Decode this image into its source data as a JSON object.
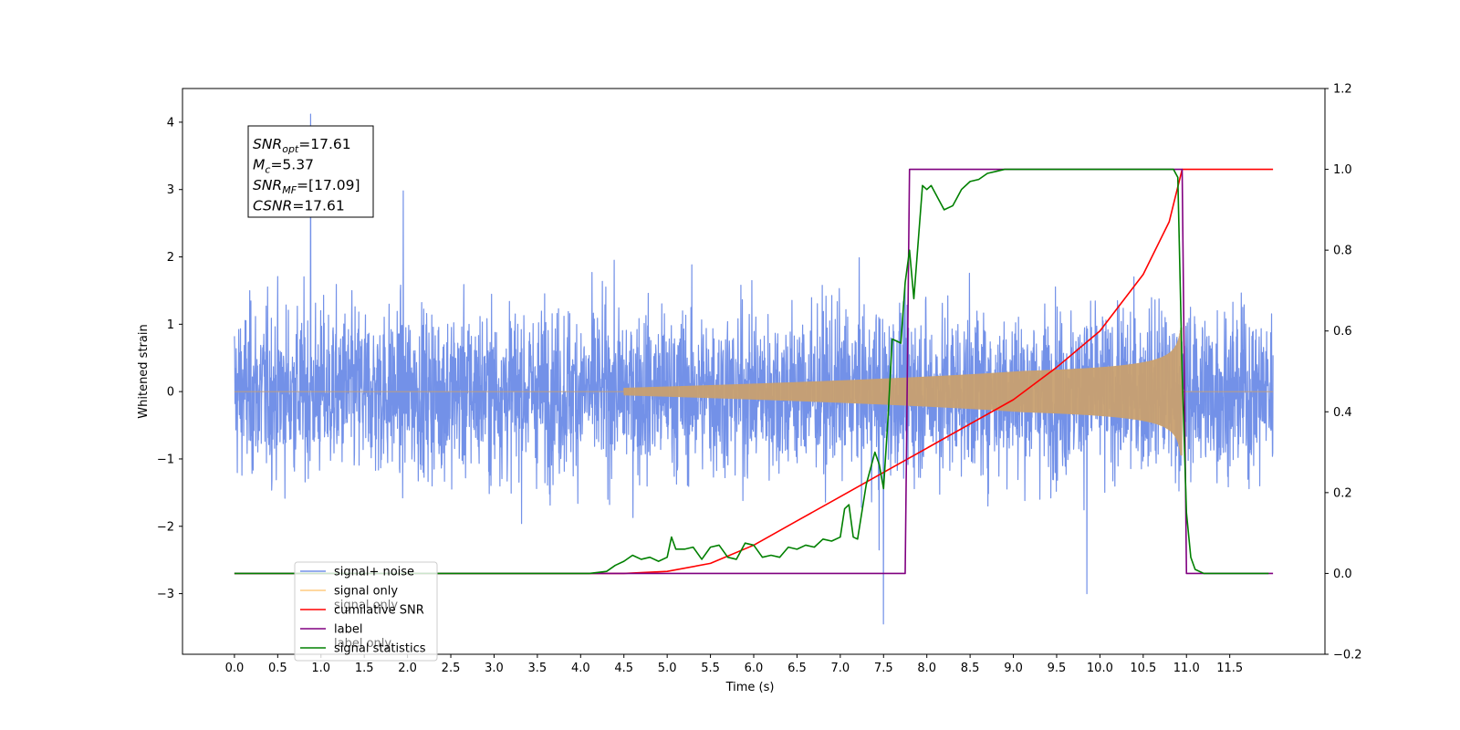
{
  "chart_data": {
    "type": "line",
    "title": "",
    "xlabel": "Time (s)",
    "ylabel": "Whitened strain",
    "xlim": [
      -0.6,
      12.6
    ],
    "ylim": [
      -3.9,
      4.5
    ],
    "y2lim": [
      -0.2,
      1.2
    ],
    "x_ticks": [
      "0.0",
      "0.5",
      "1.0",
      "1.5",
      "2.0",
      "2.5",
      "3.0",
      "3.5",
      "4.0",
      "4.5",
      "5.0",
      "5.5",
      "6.0",
      "6.5",
      "7.0",
      "7.5",
      "8.0",
      "8.5",
      "9.0",
      "9.5",
      "10.0",
      "10.5",
      "11.0",
      "11.5"
    ],
    "y_ticks": [
      "4",
      "3",
      "2",
      "1",
      "0",
      "−1",
      "−2",
      "−3"
    ],
    "y2_ticks": [
      "1.2",
      "1.0",
      "0.8",
      "0.6",
      "0.4",
      "0.2",
      "0.0",
      "−0.2"
    ],
    "grid": false,
    "legend_placement": "lower-left",
    "annotation": {
      "lines": [
        {
          "var": "SNR",
          "sub": "opt",
          "value": "=17.61"
        },
        {
          "var": "M",
          "sub": "c",
          "value": "=5.37"
        },
        {
          "var": "SNR",
          "sub": "MF",
          "value": "=[17.09]"
        },
        {
          "var": "CSNR",
          "sub": "",
          "value": "=17.61"
        }
      ]
    },
    "noise_envelope": {
      "series_name": "signal+ noise",
      "t_range": [
        0.0,
        12.0
      ],
      "peak_points": [
        [
          0.88,
          4.12
        ],
        [
          7.5,
          -3.45
        ],
        [
          1.95,
          2.98
        ],
        [
          7.45,
          -2.35
        ],
        [
          9.85,
          -3.0
        ]
      ]
    },
    "chirp": {
      "series_name": "signal only",
      "t_start": 4.5,
      "t_merge": 10.95,
      "peak_amplitude": 0.95
    },
    "series": [
      {
        "name": "cumilative SNR",
        "axis": "right",
        "color": "#ff0000",
        "x": [
          0,
          4.5,
          5.0,
          5.5,
          6.0,
          6.5,
          7.0,
          7.5,
          8.0,
          8.5,
          9.0,
          9.5,
          10.0,
          10.5,
          10.8,
          10.95,
          11.0,
          12.0
        ],
        "y": [
          0.0,
          0.0,
          0.005,
          0.025,
          0.07,
          0.13,
          0.19,
          0.25,
          0.31,
          0.37,
          0.43,
          0.51,
          0.6,
          0.74,
          0.87,
          1.0,
          1.0,
          1.0
        ]
      },
      {
        "name": "label",
        "axis": "right",
        "color": "#800080",
        "x": [
          0,
          7.75,
          7.8,
          10.95,
          11.0,
          12.0
        ],
        "y": [
          0.0,
          0.0,
          1.0,
          1.0,
          0.0,
          0.0
        ]
      },
      {
        "name": "signal statistics",
        "axis": "right",
        "color": "#008000",
        "x": [
          0,
          3.9,
          4.1,
          4.3,
          4.4,
          4.5,
          4.6,
          4.7,
          4.8,
          4.9,
          5.0,
          5.05,
          5.1,
          5.2,
          5.3,
          5.4,
          5.5,
          5.6,
          5.7,
          5.8,
          5.9,
          6.0,
          6.1,
          6.2,
          6.3,
          6.4,
          6.5,
          6.6,
          6.7,
          6.8,
          6.9,
          7.0,
          7.05,
          7.1,
          7.15,
          7.2,
          7.3,
          7.4,
          7.45,
          7.5,
          7.55,
          7.6,
          7.7,
          7.75,
          7.8,
          7.85,
          7.9,
          7.95,
          8.0,
          8.05,
          8.1,
          8.15,
          8.2,
          8.3,
          8.35,
          8.4,
          8.5,
          8.6,
          8.7,
          8.8,
          8.9,
          9.0,
          9.2,
          9.5,
          10.0,
          10.5,
          10.85,
          10.9,
          10.95,
          11.0,
          11.05,
          11.1,
          11.2,
          11.5,
          11.95
        ],
        "y": [
          0.0,
          0.0,
          0.0,
          0.005,
          0.02,
          0.03,
          0.045,
          0.035,
          0.04,
          0.03,
          0.04,
          0.09,
          0.06,
          0.06,
          0.065,
          0.035,
          0.065,
          0.07,
          0.04,
          0.035,
          0.075,
          0.07,
          0.04,
          0.045,
          0.04,
          0.065,
          0.06,
          0.07,
          0.065,
          0.085,
          0.08,
          0.09,
          0.16,
          0.17,
          0.09,
          0.085,
          0.22,
          0.3,
          0.27,
          0.21,
          0.38,
          0.58,
          0.57,
          0.72,
          0.8,
          0.68,
          0.82,
          0.96,
          0.95,
          0.96,
          0.94,
          0.92,
          0.9,
          0.91,
          0.93,
          0.95,
          0.97,
          0.975,
          0.99,
          0.995,
          1.0,
          1.0,
          1.0,
          1.0,
          1.0,
          1.0,
          1.0,
          0.98,
          0.5,
          0.15,
          0.04,
          0.01,
          0.0,
          0.0,
          0.0
        ]
      }
    ],
    "legend": [
      {
        "label": "signal+ noise",
        "color": "#7391e8"
      },
      {
        "label": "signal only",
        "color": "#ffcc80"
      },
      {
        "label": "cumilative SNR",
        "color": "#ff0000"
      },
      {
        "label": "label",
        "color": "#800080"
      },
      {
        "label": "signal statistics",
        "color": "#008000"
      }
    ],
    "legend_ghost_text": [
      "signal only",
      "label only"
    ],
    "colors": {
      "noise": "#7391e8",
      "signal": "#c8a070",
      "snr": "#ff0000",
      "label": "#800080",
      "stats": "#008000"
    }
  }
}
